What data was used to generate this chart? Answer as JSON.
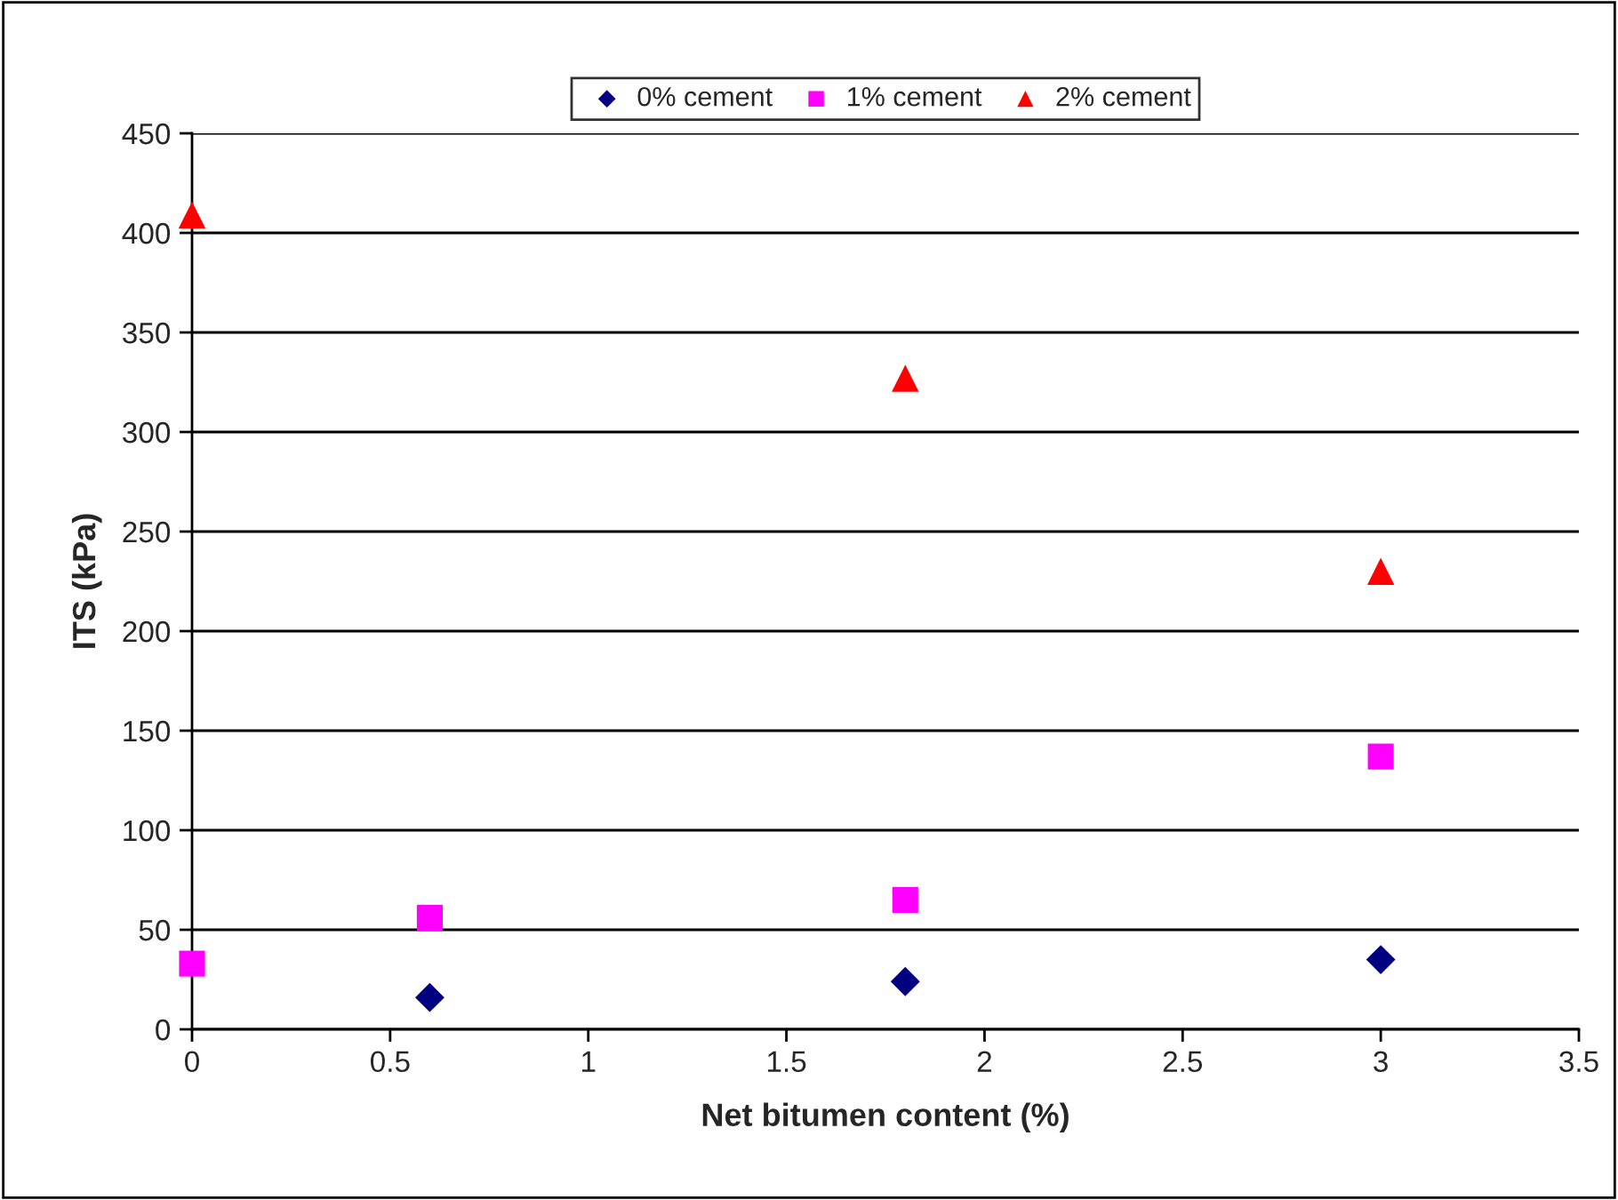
{
  "chart_data": {
    "type": "scatter",
    "xlabel": "Net bitumen content (%)",
    "ylabel": "ITS (kPa)",
    "xlim": [
      0,
      3.5
    ],
    "xticks": [
      0,
      0.5,
      1,
      1.5,
      2,
      2.5,
      3,
      3.5
    ],
    "ylim": [
      0,
      450
    ],
    "yticks": [
      0,
      50,
      100,
      150,
      200,
      250,
      300,
      350,
      400,
      450
    ],
    "grid": "y",
    "legend": "top",
    "series": [
      {
        "name": "0% cement",
        "color": "#000080",
        "marker": "diamond",
        "x": [
          0.6,
          1.8,
          3.0
        ],
        "values": [
          16,
          24,
          35
        ]
      },
      {
        "name": "1% cement",
        "color": "#ff00ff",
        "marker": "square",
        "x": [
          0,
          0.6,
          1.8,
          3.0
        ],
        "values": [
          33,
          56,
          65,
          137
        ]
      },
      {
        "name": "2% cement",
        "color": "#ff0000",
        "marker": "triangle",
        "x": [
          0,
          1.8,
          3.0
        ],
        "values": [
          409,
          327,
          230
        ]
      }
    ]
  }
}
